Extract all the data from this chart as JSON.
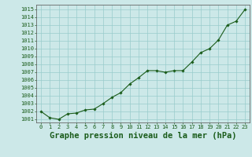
{
  "x": [
    0,
    1,
    2,
    3,
    4,
    5,
    6,
    7,
    8,
    9,
    10,
    11,
    12,
    13,
    14,
    15,
    16,
    17,
    18,
    19,
    20,
    21,
    22,
    23
  ],
  "y": [
    1002.0,
    1001.2,
    1001.0,
    1001.7,
    1001.8,
    1002.2,
    1002.3,
    1003.0,
    1003.8,
    1004.4,
    1005.5,
    1006.3,
    1007.2,
    1007.2,
    1007.0,
    1007.2,
    1007.2,
    1008.3,
    1009.5,
    1010.0,
    1011.1,
    1013.0,
    1013.5,
    1015.0
  ],
  "line_color": "#1a5c1a",
  "marker_color": "#1a5c1a",
  "bg_color": "#cce8e8",
  "grid_color": "#99cccc",
  "axis_color": "#666666",
  "title": "Graphe pression niveau de la mer (hPa)",
  "ylabel_ticks": [
    1001,
    1002,
    1003,
    1004,
    1005,
    1006,
    1007,
    1008,
    1009,
    1010,
    1011,
    1012,
    1013,
    1014,
    1015
  ],
  "ylim": [
    1000.6,
    1015.6
  ],
  "xlim": [
    -0.5,
    23.5
  ],
  "title_color": "#1a5c1a",
  "tick_fontsize": 5.0,
  "title_fontsize": 7.5
}
